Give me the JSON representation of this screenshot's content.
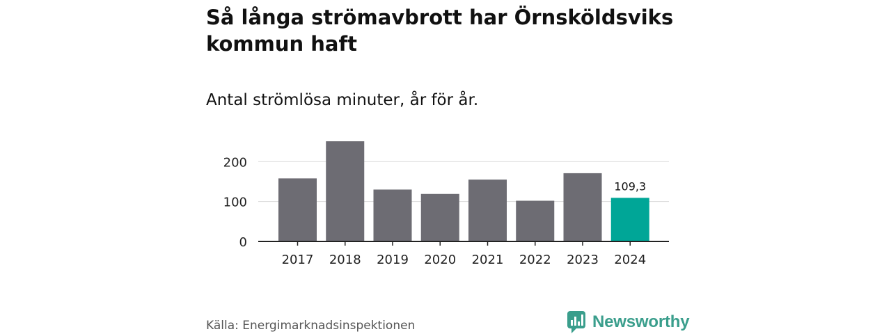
{
  "header": {
    "title": "Så långa strömavbrott har Örnsköldsviks kommun haft",
    "subtitle": "Antal strömlösa minuter, år för år."
  },
  "footer": {
    "source": "Källa: Energimarknadsinspektionen",
    "brand": "Newsworthy",
    "brand_icon": "newsworthy-logo-icon"
  },
  "chart_data": {
    "type": "bar",
    "title": "Så långa strömavbrott har Örnsköldsviks kommun haft",
    "subtitle": "Antal strömlösa minuter, år för år.",
    "categories": [
      "2017",
      "2018",
      "2019",
      "2020",
      "2021",
      "2022",
      "2023",
      "2024"
    ],
    "values": [
      158,
      251,
      130,
      119,
      155,
      102,
      171,
      109.3
    ],
    "labels": [
      "",
      "",
      "",
      "",
      "",
      "",
      "",
      "109,3"
    ],
    "yticks": [
      0,
      100,
      200
    ],
    "ylim": [
      0,
      265
    ],
    "xlabel": "",
    "ylabel": "",
    "grid": true,
    "legend": "none",
    "colors": {
      "default": "#6d6c73",
      "highlight": "#00a697",
      "grid": "#d9d9d9",
      "axis": "#222222"
    }
  }
}
